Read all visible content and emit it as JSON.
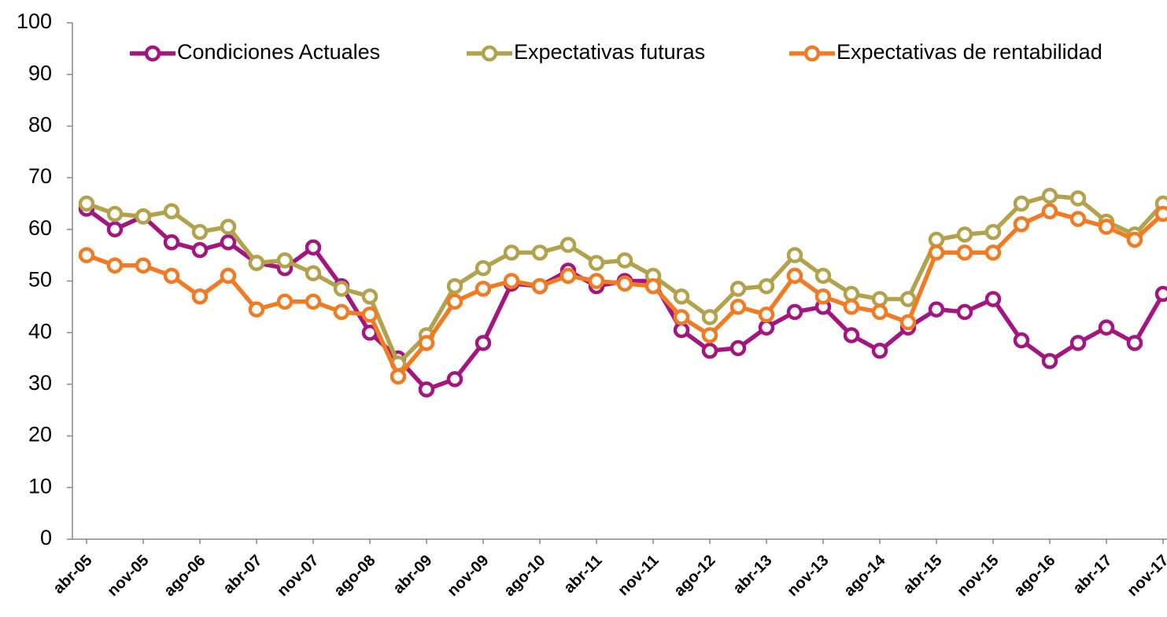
{
  "chart_data": {
    "type": "line",
    "categories": [
      "abr-05",
      null,
      "nov-05",
      null,
      "ago-06",
      null,
      "abr-07",
      null,
      "nov-07",
      null,
      "ago-08",
      null,
      "abr-09",
      null,
      "nov-09",
      null,
      "ago-10",
      null,
      "abr-11",
      null,
      "nov-11",
      null,
      "ago-12",
      null,
      "abr-13",
      null,
      "nov-13",
      null,
      "ago-14",
      null,
      "abr-15",
      null,
      "nov-15",
      null,
      "ago-16",
      null,
      "abr-17",
      null,
      "nov-17"
    ],
    "series": [
      {
        "name": "Condiciones Actuales",
        "color": "#a3167f",
        "values": [
          64,
          60,
          62.5,
          57.5,
          56,
          57.5,
          53.5,
          52.5,
          56.5,
          49,
          40,
          35,
          29,
          31,
          38,
          49.5,
          49,
          52,
          49,
          50,
          50,
          40.5,
          36.5,
          37,
          41,
          44,
          45,
          39.5,
          36.5,
          41,
          44.5,
          44,
          46.5,
          38.5,
          34.5,
          38,
          41,
          38,
          47.5
        ]
      },
      {
        "name": "Expectativas futuras",
        "color": "#b3a24c",
        "values": [
          65,
          63,
          62.5,
          63.5,
          59.5,
          60.5,
          53.5,
          54,
          51.5,
          48.5,
          47,
          34,
          39.5,
          49,
          52.5,
          55.5,
          55.5,
          57,
          53.5,
          54,
          51,
          47,
          43,
          48.5,
          49,
          55,
          51,
          47.5,
          46.5,
          46.5,
          58,
          59,
          59.5,
          65,
          66.5,
          66,
          61.5,
          59,
          65
        ]
      },
      {
        "name": "Expectativas de rentabilidad",
        "color": "#f07b22",
        "values": [
          55,
          53,
          53,
          51,
          47,
          51,
          44.5,
          46,
          46,
          44,
          43.5,
          31.5,
          38,
          46,
          48.5,
          50,
          49,
          51,
          50,
          49.5,
          49,
          43,
          39.5,
          45,
          43.5,
          51,
          47,
          45,
          44,
          42,
          55.5,
          55.5,
          55.5,
          61,
          63.5,
          62,
          60.5,
          58,
          63
        ]
      }
    ],
    "ylim": [
      0,
      100
    ],
    "yticks": [
      0,
      10,
      20,
      30,
      40,
      50,
      60,
      70,
      80,
      90,
      100
    ],
    "grid": false,
    "legend": "top"
  }
}
